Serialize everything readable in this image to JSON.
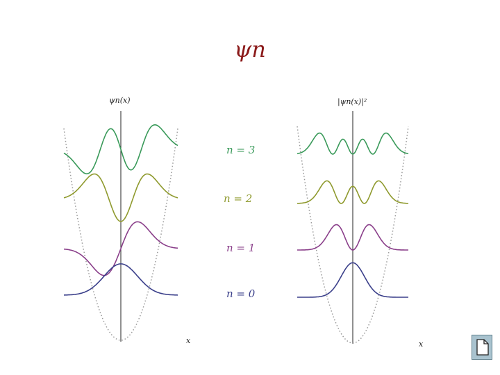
{
  "title": "ψn",
  "left_panel": {
    "ylabel": "ψn(x)",
    "xlabel": "x"
  },
  "right_panel": {
    "ylabel": "|ψn(x)|²",
    "xlabel": "x"
  },
  "levels": [
    {
      "label": "n = 3",
      "n": 3,
      "color": "#3a9a5a"
    },
    {
      "label": "n = 2",
      "n": 2,
      "color": "#8f9a2e"
    },
    {
      "label": "n = 1",
      "n": 1,
      "color": "#8a3f8a"
    },
    {
      "label": "n = 0",
      "n": 0,
      "color": "#3a3f8a"
    }
  ],
  "note_icon": "note-page-icon"
}
